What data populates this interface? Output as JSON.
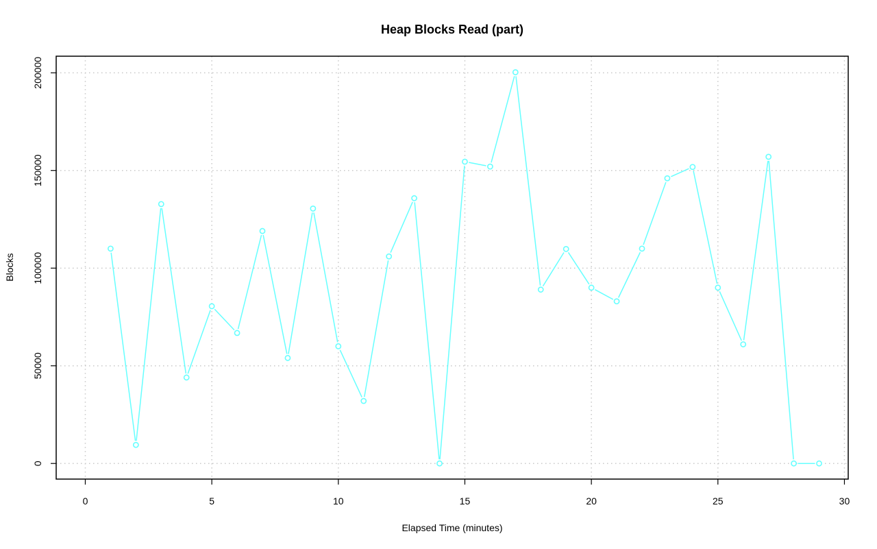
{
  "colors": {
    "series": "#66ffff"
  },
  "chart_data": {
    "type": "line",
    "title": "Heap Blocks Read (part)",
    "xlabel": "Elapsed Time (minutes)",
    "ylabel": "Blocks",
    "xlim": [
      -1.15,
      30.15
    ],
    "ylim": [
      -8000,
      208500
    ],
    "x_ticks": [
      0,
      5,
      10,
      15,
      20,
      25,
      30
    ],
    "y_ticks": [
      0,
      50000,
      100000,
      150000,
      200000
    ],
    "grid": true,
    "x": [
      1,
      2,
      3,
      4,
      5,
      6,
      7,
      8,
      9,
      10,
      11,
      12,
      13,
      14,
      15,
      16,
      17,
      18,
      19,
      20,
      21,
      22,
      23,
      24,
      25,
      26,
      27,
      28,
      29
    ],
    "values": [
      110000,
      9500,
      132800,
      44000,
      80500,
      66800,
      119000,
      54000,
      130500,
      60000,
      32000,
      106000,
      135800,
      0,
      154500,
      152000,
      200300,
      89000,
      109800,
      90000,
      83000,
      110000,
      146000,
      151800,
      90000,
      61000,
      157000,
      0,
      0
    ]
  }
}
